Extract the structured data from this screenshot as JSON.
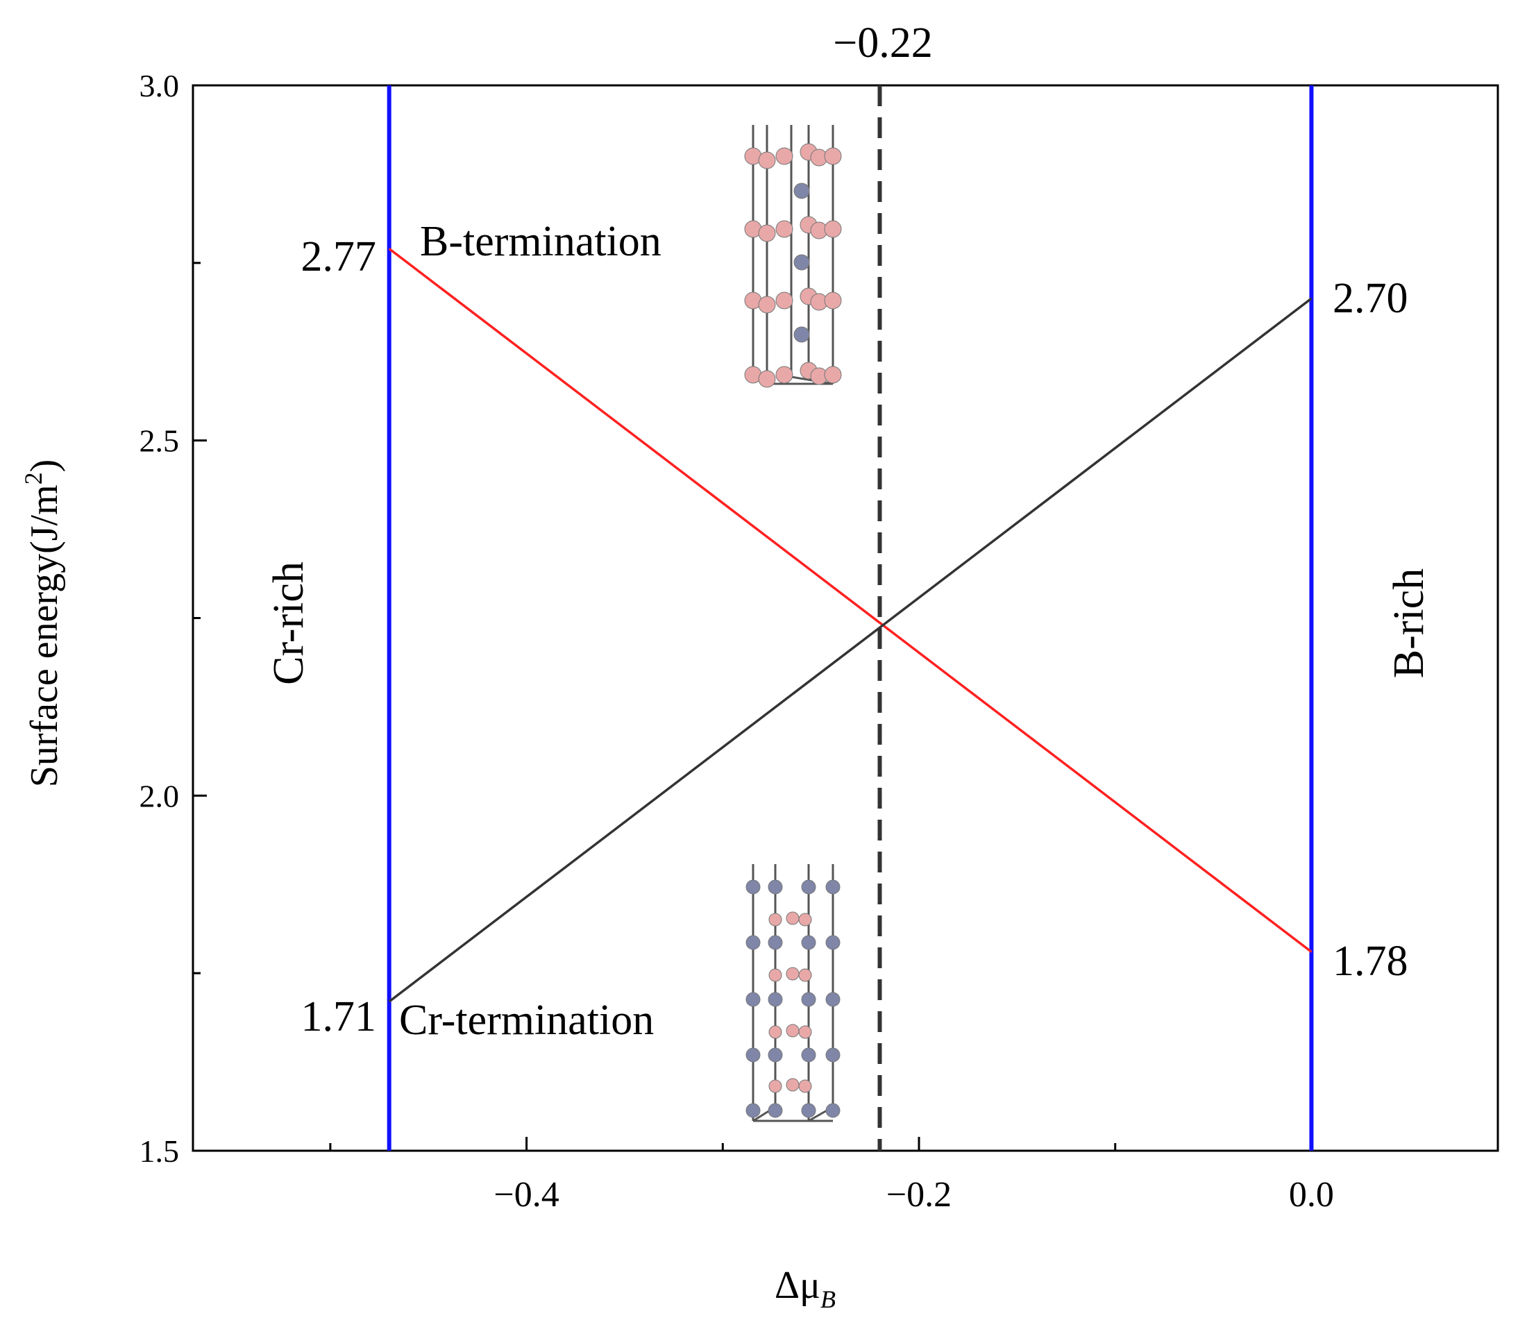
{
  "chart_data": {
    "type": "line",
    "xlabel": "Δμ",
    "xlabel_sub": "B",
    "ylabel": "Surface energy(J/m",
    "ylabel_sup": "2",
    "ylabel_close": ")",
    "xlim": [
      -0.57,
      0.095
    ],
    "ylim": [
      1.5,
      3.0
    ],
    "x_ticks": [
      -0.4,
      -0.2,
      0.0
    ],
    "x_tick_labels": [
      "−0.4",
      "−0.2",
      "0.0"
    ],
    "x_minor_ticks": [
      -0.5,
      -0.3,
      -0.1
    ],
    "y_ticks": [
      1.5,
      2.0,
      2.5,
      3.0
    ],
    "y_tick_labels": [
      "1.5",
      "2.0",
      "2.5",
      "3.0"
    ],
    "y_minor_ticks": [
      1.75,
      2.25,
      2.75
    ],
    "series": [
      {
        "id": "b-termination",
        "x": [
          -0.47,
          0.0
        ],
        "y": [
          2.77,
          1.78
        ],
        "color": "#ff2020"
      },
      {
        "id": "cr-termination",
        "x": [
          -0.47,
          0.0
        ],
        "y": [
          1.71,
          2.7
        ],
        "color": "#333333"
      }
    ],
    "boundaries": [
      {
        "x": -0.47,
        "color": "#1010ff",
        "label": "Cr-rich"
      },
      {
        "x": 0.0,
        "color": "#1010ff",
        "label": "B-rich"
      }
    ],
    "crossover": {
      "x": -0.22,
      "label": "−0.22",
      "style": "dashed",
      "color": "#333333"
    },
    "series_labels": {
      "b_termination": "B-termination",
      "cr_termination": "Cr-termination"
    },
    "value_labels": [
      {
        "id": "b-left",
        "text": "2.77"
      },
      {
        "id": "cr-left",
        "text": "1.71"
      },
      {
        "id": "cr-right",
        "text": "2.70"
      },
      {
        "id": "b-right",
        "text": "1.78"
      }
    ],
    "grid": false,
    "legend": "none"
  },
  "colors": {
    "axis_label": "#8b4513",
    "boundary": "#1010ff",
    "b_termination": "#ff2020",
    "cr_termination": "#333333",
    "atom_b": "#e8a8a8",
    "atom_cr": "#7f86a8"
  },
  "insets": [
    {
      "name": "b-termination-structure-icon"
    },
    {
      "name": "cr-termination-structure-icon"
    }
  ]
}
